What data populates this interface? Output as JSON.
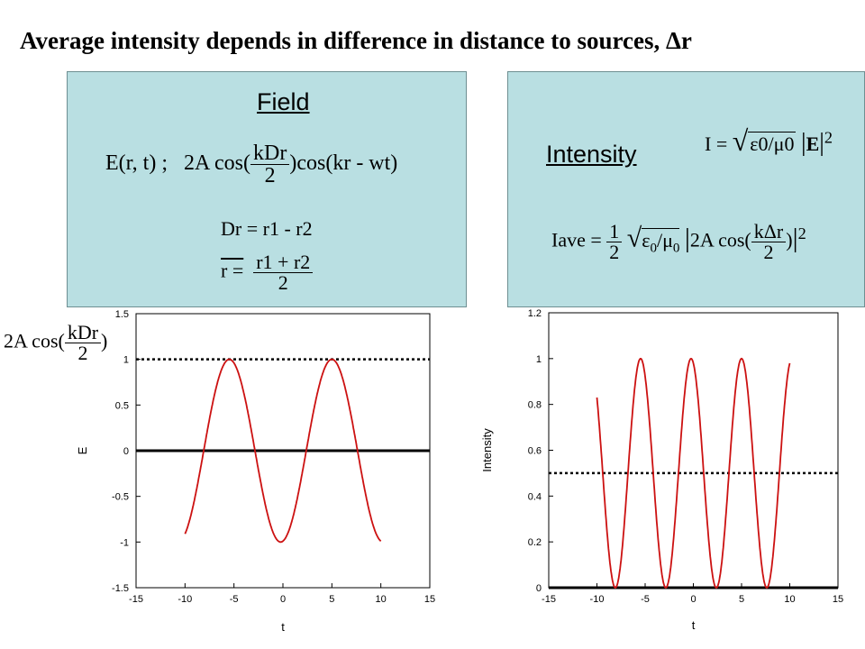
{
  "slide_title": "Average intensity depends in difference in distance to sources, Δr",
  "field_panel": {
    "label": "Field",
    "eq_e_lhs": "E(r, t) ;",
    "eq_e_amp": "2A cos(",
    "eq_e_num": "kDr",
    "eq_e_den": "2",
    "eq_e_tail": ")cos(kr - wt)",
    "eq_dr": "Dr = r1 - r2",
    "eq_rbar_lhs": "r =",
    "eq_rbar_num": "r1 + r2",
    "eq_rbar_den": "2"
  },
  "intensity_panel": {
    "label": "Intensity",
    "eq_i_lhs": "I =",
    "eq_i_frac": "ε0/μ0",
    "eq_i_vec": "E",
    "eq_iave_lhs": "Iave =",
    "eq_iave_half_num": "1",
    "eq_iave_half_den": "2",
    "eq_iave_mid": "2A cos(",
    "eq_iave_num": "kΔr",
    "eq_iave_den": "2",
    "eq_iave_tail": ")"
  },
  "left_annotation": {
    "amp": "2A cos(",
    "num": "kDr",
    "den": "2",
    "tail": ")"
  },
  "colors": {
    "panel_bg": "#b9dfe2",
    "curve": "#cc1111"
  },
  "chart_data": [
    {
      "type": "line",
      "xlabel": "t",
      "ylabel": "E",
      "xlim": [
        -15,
        15
      ],
      "ylim": [
        -1.5,
        1.5
      ],
      "xticks": [
        -15,
        -10,
        -5,
        0,
        5,
        10,
        15
      ],
      "yticks": [
        -1.5,
        -1,
        -0.5,
        0,
        0.5,
        1,
        1.5
      ],
      "series": [
        {
          "function": "cos(0.6*(t-5))",
          "t_range": [
            -10,
            10
          ],
          "color": "#cc1111"
        }
      ],
      "hlines": [
        {
          "y": 0,
          "style": "solid"
        },
        {
          "y": 1,
          "style": "dotted"
        }
      ]
    },
    {
      "type": "line",
      "xlabel": "t",
      "ylabel": "Intensity",
      "xlim": [
        -15,
        15
      ],
      "ylim": [
        0,
        1.2
      ],
      "xticks": [
        -15,
        -10,
        -5,
        0,
        5,
        10,
        15
      ],
      "yticks": [
        0,
        0.2,
        0.4,
        0.6,
        0.8,
        1,
        1.2
      ],
      "series": [
        {
          "function": "cos^2(0.6*(t-5))",
          "t_range": [
            -10,
            10
          ],
          "color": "#cc1111"
        }
      ],
      "hlines": [
        {
          "y": 0,
          "style": "solid"
        },
        {
          "y": 0.5,
          "style": "dotted"
        }
      ]
    }
  ]
}
